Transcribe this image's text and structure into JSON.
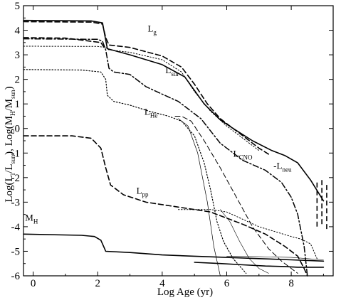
{
  "chart_data": {
    "type": "line",
    "xlabel": "Log Age (yr)",
    "ylabel": {
      "p1": "Log(L",
      "s1": "i",
      "p2": "/L",
      "s2": "sun",
      "p3": "), Log(M",
      "s3": "H",
      "p4": "/M",
      "s4": "sun",
      "p5": ")"
    },
    "xlim": [
      -0.3,
      9.3
    ],
    "ylim": [
      -6,
      5
    ],
    "xticks": [
      0,
      2,
      4,
      6,
      8
    ],
    "yticks": [
      5,
      4,
      3,
      2,
      1,
      0,
      -1,
      -2,
      -3,
      -4,
      -5,
      -6
    ],
    "grid": false,
    "series": [
      {
        "id": "L_sur",
        "style": "solid",
        "width": 1.6,
        "label": {
          "main": "L",
          "sub": "sur"
        },
        "x": [
          -0.3,
          1.8,
          2.15,
          2.22,
          2.3,
          3.0,
          4.0,
          4.7,
          5.3,
          5.8,
          6.2,
          6.8,
          7.4,
          7.8,
          8.2,
          8.6,
          9.0
        ],
        "y": [
          4.4,
          4.38,
          4.3,
          3.8,
          3.25,
          3.0,
          2.6,
          2.1,
          1.0,
          0.35,
          0.0,
          -0.5,
          -0.9,
          -1.1,
          -1.4,
          -2.1,
          -2.95
        ]
      },
      {
        "id": "L_g",
        "style": "dashed",
        "width": 1.6,
        "label": {
          "main": "L",
          "sub": "g"
        },
        "x": [
          -0.3,
          1.8,
          2.15,
          2.25,
          2.35,
          3.0,
          4.0,
          4.6,
          5.0,
          5.4,
          5.8,
          6.2,
          6.6,
          7.0,
          7.3
        ],
        "y": [
          4.35,
          4.33,
          4.25,
          3.7,
          3.4,
          3.3,
          2.95,
          2.5,
          1.8,
          1.0,
          0.4,
          0.0,
          -0.4,
          -0.8,
          -1.05
        ]
      },
      {
        "id": "L_g_dashed_2",
        "style": "dashed",
        "width": 1.6,
        "x": [
          -0.3,
          1.0,
          2.1,
          2.2
        ],
        "y": [
          3.7,
          3.68,
          3.5,
          3.3
        ]
      },
      {
        "id": "L_thin_dotted",
        "style": "dotted",
        "width": 1.0,
        "x": [
          -0.3,
          2.0,
          2.25,
          2.35,
          3.0,
          4.0,
          4.6,
          5.0,
          5.5,
          6.0,
          6.5,
          7.0
        ],
        "y": [
          3.35,
          3.34,
          3.3,
          3.2,
          3.1,
          2.8,
          2.3,
          1.5,
          0.7,
          0.1,
          -0.4,
          -0.9
        ]
      },
      {
        "id": "L_He",
        "style": "dotted",
        "width": 1.2,
        "label": {
          "main": "L",
          "sub": "He"
        },
        "x": [
          -0.3,
          1.5,
          2.1,
          2.25,
          2.3,
          2.5,
          3.0,
          3.6,
          4.2,
          4.6,
          5.0,
          5.3,
          5.5,
          5.7,
          5.9,
          6.2,
          6.6
        ],
        "y": [
          2.4,
          2.38,
          2.3,
          2.0,
          1.35,
          1.1,
          0.95,
          0.7,
          0.5,
          0.3,
          -0.3,
          -1.4,
          -2.5,
          -3.8,
          -4.6,
          -5.3,
          -5.9
        ]
      },
      {
        "id": "L_CNO",
        "style": "dashdot",
        "width": 1.5,
        "label": {
          "main": "L",
          "sub": "CNO"
        },
        "x": [
          -0.3,
          2.0,
          2.15,
          2.25,
          2.35,
          2.5,
          3.0,
          3.5,
          4.0,
          4.5,
          5.2,
          5.8,
          6.5,
          7.2,
          7.7,
          8.0,
          8.2,
          8.4,
          8.5
        ],
        "y": [
          3.65,
          3.63,
          3.55,
          3.2,
          2.45,
          2.3,
          2.2,
          1.7,
          1.4,
          1.1,
          0.4,
          -0.6,
          -1.3,
          -1.7,
          -2.2,
          -2.8,
          -3.5,
          -4.8,
          -6.0
        ]
      },
      {
        "id": "L_pp",
        "style": "dashed",
        "width": 1.6,
        "label": {
          "main": "L",
          "sub": "pp"
        },
        "x": [
          -0.3,
          1.2,
          1.8,
          2.1,
          2.25,
          2.4,
          2.8,
          3.5,
          4.5,
          5.5,
          6.5,
          7.2,
          7.8,
          8.2,
          8.4,
          8.5
        ],
        "y": [
          -0.3,
          -0.3,
          -0.4,
          -0.8,
          -1.6,
          -2.3,
          -2.7,
          -3.0,
          -3.2,
          -3.4,
          -3.9,
          -4.3,
          -4.8,
          -5.2,
          -5.7,
          -6.0
        ]
      },
      {
        "id": "L_neu",
        "style": "dashed",
        "width": 1.0,
        "label": {
          "main": "-L",
          "sub": "neu"
        },
        "x": [
          4.4,
          4.6,
          4.9,
          5.3,
          5.8,
          6.3,
          6.8,
          7.3,
          7.7,
          8.0,
          8.2
        ],
        "y": [
          0.5,
          0.5,
          0.3,
          -0.5,
          -1.6,
          -2.8,
          -4.0,
          -4.9,
          -5.4,
          -5.7,
          -5.9
        ]
      },
      {
        "id": "thin_steep",
        "style": "solid",
        "width": 0.7,
        "x": [
          4.5,
          4.8,
          5.1,
          5.4,
          5.6,
          5.8
        ],
        "y": [
          0.4,
          0.1,
          -1.0,
          -3.0,
          -4.8,
          -6.0
        ]
      },
      {
        "id": "thin_dotted_low",
        "style": "dotted",
        "width": 1.0,
        "x": [
          4.5,
          5.0,
          5.5,
          6.0,
          6.5,
          7.0,
          7.5,
          8.0,
          8.3,
          8.6,
          8.8
        ],
        "y": [
          -3.3,
          -3.3,
          -3.3,
          -3.4,
          -3.7,
          -4.0,
          -4.2,
          -4.4,
          -4.5,
          -4.7,
          -5.3
        ]
      },
      {
        "id": "M_H",
        "style": "solid",
        "width": 1.6,
        "label": {
          "main": "M",
          "sub": "H"
        },
        "x": [
          -0.3,
          1.5,
          1.9,
          2.1,
          2.2,
          2.25,
          3.0,
          4.0,
          5.0,
          6.0,
          7.0,
          8.0,
          9.0
        ],
        "y": [
          -4.3,
          -4.35,
          -4.4,
          -4.55,
          -4.85,
          -5.0,
          -5.05,
          -5.15,
          -5.2,
          -5.25,
          -5.3,
          -5.35,
          -5.4
        ]
      },
      {
        "id": "M_H_thin",
        "style": "solid",
        "width": 0.6,
        "x": [
          6.0,
          7.0,
          8.0,
          8.5,
          9.0
        ],
        "y": [
          -5.2,
          -5.22,
          -5.25,
          -5.3,
          -5.35
        ]
      },
      {
        "id": "low_solid",
        "style": "solid",
        "width": 1.6,
        "x": [
          5.0,
          5.8,
          6.5,
          7.2,
          7.8,
          8.2,
          8.5,
          9.0
        ],
        "y": [
          -5.45,
          -5.5,
          -5.55,
          -5.6,
          -5.62,
          -5.65,
          -5.65,
          -5.65
        ]
      },
      {
        "id": "thin_steep_2",
        "style": "solid",
        "width": 0.6,
        "x": [
          5.8,
          6.1,
          6.4,
          6.7,
          7.0,
          7.3
        ],
        "y": [
          -3.3,
          -3.8,
          -4.6,
          -5.3,
          -5.7,
          -5.9
        ]
      }
    ],
    "labels": [
      {
        "series": "L_g",
        "x": 3.55,
        "y": 3.95
      },
      {
        "series": "L_sur",
        "x": 4.1,
        "y": 2.25
      },
      {
        "series": "L_He",
        "x": 3.45,
        "y": 0.55
      },
      {
        "series": "L_CNO",
        "x": 6.2,
        "y": -1.15
      },
      {
        "series": "L_neu",
        "x": 7.45,
        "y": -1.65
      },
      {
        "series": "L_pp",
        "x": 3.2,
        "y": -2.65
      },
      {
        "series": "M_H",
        "x": -0.25,
        "y": -3.75
      }
    ],
    "end_markers": {
      "x": [
        8.8,
        8.95,
        9.1
      ],
      "y_top": [
        -2.2,
        -2.1,
        -2.3
      ],
      "y_bottom": [
        -4.0,
        -3.9,
        -4.1
      ]
    }
  }
}
